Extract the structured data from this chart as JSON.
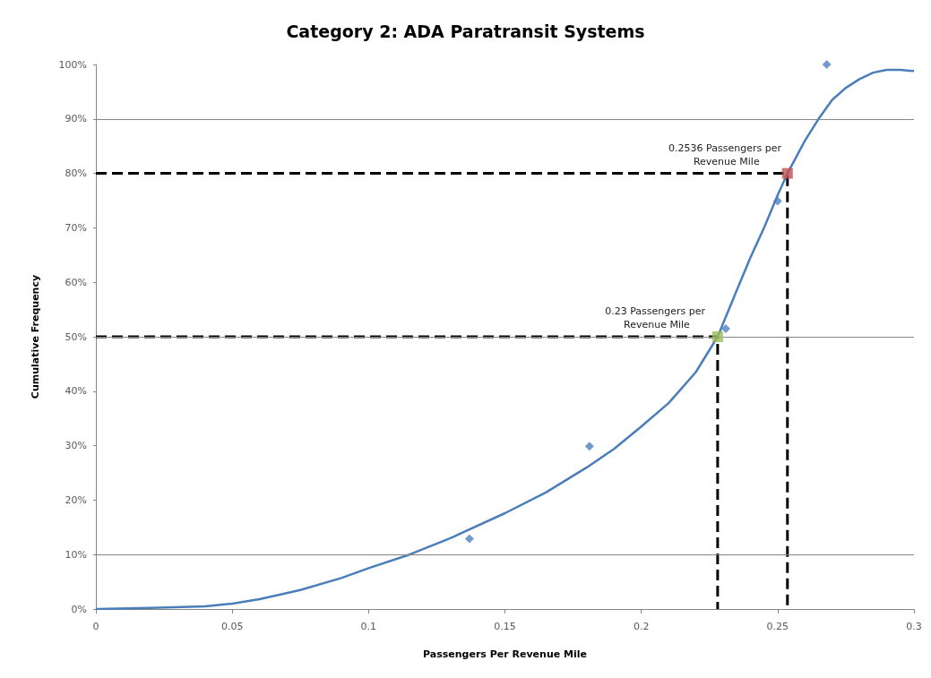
{
  "chart_data": {
    "type": "scatter",
    "title": "Category 2: ADA Paratransit Systems",
    "xlabel": "Passengers Per Revenue Mile",
    "ylabel": "Cumulative Frequency",
    "xlim": [
      0,
      0.3
    ],
    "xticks": [
      0,
      0.05,
      0.1,
      0.15,
      0.2,
      0.25,
      0.3
    ],
    "ylim": [
      0,
      100
    ],
    "yticks": [
      {
        "value": 0,
        "label": "0%"
      },
      {
        "value": 10,
        "label": "10%"
      },
      {
        "value": 20,
        "label": "20%"
      },
      {
        "value": 30,
        "label": "30%"
      },
      {
        "value": 40,
        "label": "40%"
      },
      {
        "value": 50,
        "label": "50%"
      },
      {
        "value": 60,
        "label": "60%"
      },
      {
        "value": 70,
        "label": "70%"
      },
      {
        "value": 80,
        "label": "80%"
      },
      {
        "value": 90,
        "label": "90%"
      },
      {
        "value": 100,
        "label": "100%"
      }
    ],
    "ref_lines": [
      {
        "axis": "y",
        "value": 10,
        "color": "#868686"
      },
      {
        "axis": "y",
        "value": 50,
        "color": "#868686"
      },
      {
        "axis": "y",
        "value": 90,
        "color": "#868686"
      }
    ],
    "annotations": [
      {
        "text": "0.23 Passengers per Revenue Mile",
        "x": 0.228,
        "y": 50
      },
      {
        "text": "0.2536 Passengers per Revenue Mile",
        "x": 0.2536,
        "y": 80
      }
    ],
    "series": [
      {
        "type": "line",
        "color": "#4a7ebb",
        "marker": "none",
        "x": [
          0,
          0.02,
          0.04,
          0.05,
          0.06,
          0.075,
          0.09,
          0.1,
          0.115,
          0.13,
          0.15,
          0.165,
          0.18,
          0.19,
          0.2,
          0.21,
          0.22,
          0.228,
          0.235,
          0.24,
          0.245,
          0.25,
          0.2536,
          0.26,
          0.265,
          0.27,
          0.275,
          0.28,
          0.285,
          0.29,
          0.295,
          0.3
        ],
        "values": [
          0,
          0.2,
          0.5,
          1,
          1.8,
          3.5,
          5.7,
          7.5,
          10,
          13,
          17.6,
          21.4,
          26,
          29.4,
          33.5,
          37.8,
          43.5,
          50,
          58.5,
          64.5,
          70,
          76,
          80,
          86,
          90,
          93.5,
          95.7,
          97.3,
          98.5,
          99,
          99,
          98.8
        ]
      },
      {
        "type": "scatter",
        "color": "#4f81bd",
        "marker": "diamond",
        "x": [
          0.137,
          0.181,
          0.231,
          0.25,
          0.268
        ],
        "values": [
          12.9,
          29.9,
          51.5,
          74.9,
          100
        ]
      },
      {
        "type": "line",
        "color": "#000000",
        "line_style": "dashed",
        "marker": "none",
        "x": [
          0,
          0.228,
          0.228
        ],
        "values": [
          50,
          50,
          0
        ]
      },
      {
        "type": "line",
        "color": "#000000",
        "line_style": "dashed",
        "marker": "none",
        "x": [
          0,
          0.2536,
          0.2536
        ],
        "values": [
          80,
          80,
          0
        ]
      },
      {
        "type": "scatter",
        "color": "#9bbb59",
        "marker": "square",
        "x": [
          0.228
        ],
        "values": [
          50
        ]
      },
      {
        "type": "scatter",
        "color": "#c0504d",
        "marker": "square",
        "x": [
          0.2536
        ],
        "values": [
          80
        ]
      }
    ]
  }
}
